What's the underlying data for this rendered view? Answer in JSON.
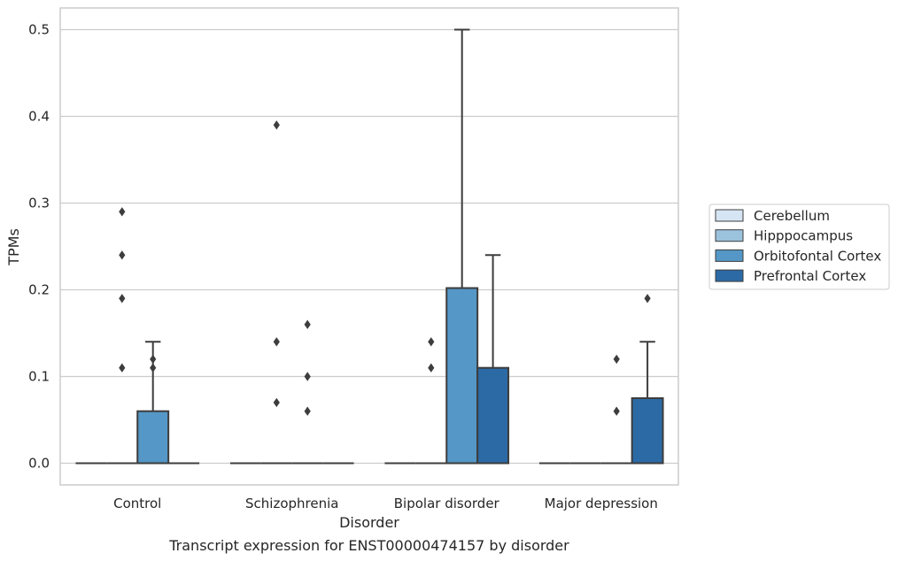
{
  "chart_data": {
    "type": "box",
    "title": "Transcript expression for ENST00000474157 by disorder",
    "xlabel": "Disorder",
    "ylabel": "TPMs",
    "ylim": [
      -0.025,
      0.525
    ],
    "yticks": [
      "0.0",
      "0.1",
      "0.2",
      "0.3",
      "0.4",
      "0.5"
    ],
    "grid": "horizontal",
    "legend_position": "right",
    "categories": [
      "Control",
      "Schizophrenia",
      "Bipolar disorder",
      "Major depression"
    ],
    "series": [
      {
        "name": "Cerebellum",
        "color": "#d6e5f3",
        "boxes": [
          {
            "q1": 0,
            "median": 0,
            "q3": 0,
            "whisker_low": 0,
            "whisker_high": 0,
            "outliers": []
          },
          {
            "q1": 0,
            "median": 0,
            "q3": 0,
            "whisker_low": 0,
            "whisker_high": 0,
            "outliers": []
          },
          {
            "q1": 0,
            "median": 0,
            "q3": 0,
            "whisker_low": 0,
            "whisker_high": 0,
            "outliers": []
          },
          {
            "q1": 0,
            "median": 0,
            "q3": 0,
            "whisker_low": 0,
            "whisker_high": 0,
            "outliers": []
          }
        ]
      },
      {
        "name": "Hipppocampus",
        "color": "#9cc3de",
        "boxes": [
          {
            "q1": 0,
            "median": 0,
            "q3": 0,
            "whisker_low": 0,
            "whisker_high": 0,
            "outliers": [
              0.11,
              0.29,
              0.19,
              0.24
            ]
          },
          {
            "q1": 0,
            "median": 0,
            "q3": 0,
            "whisker_low": 0,
            "whisker_high": 0,
            "outliers": [
              0.07,
              0.14,
              0.39
            ]
          },
          {
            "q1": 0,
            "median": 0,
            "q3": 0,
            "whisker_low": 0,
            "whisker_high": 0,
            "outliers": [
              0.14,
              0.11
            ]
          },
          {
            "q1": 0,
            "median": 0,
            "q3": 0,
            "whisker_low": 0,
            "whisker_high": 0,
            "outliers": []
          }
        ]
      },
      {
        "name": "Orbitofontal Cortex",
        "color": "#5597c6",
        "boxes": [
          {
            "q1": 0,
            "median": 0,
            "q3": 0.06,
            "whisker_low": 0,
            "whisker_high": 0.14,
            "outliers": [
              0.12,
              0.11
            ]
          },
          {
            "q1": 0,
            "median": 0,
            "q3": 0,
            "whisker_low": 0,
            "whisker_high": 0,
            "outliers": [
              0.16,
              0.06,
              0.1
            ]
          },
          {
            "q1": 0,
            "median": 0,
            "q3": 0.202,
            "whisker_low": 0,
            "whisker_high": 0.5,
            "outliers": []
          },
          {
            "q1": 0,
            "median": 0,
            "q3": 0,
            "whisker_low": 0,
            "whisker_high": 0,
            "outliers": [
              0.12,
              0.06
            ]
          }
        ]
      },
      {
        "name": "Prefrontal Cortex",
        "color": "#2b6aa5",
        "boxes": [
          {
            "q1": 0,
            "median": 0,
            "q3": 0,
            "whisker_low": 0,
            "whisker_high": 0,
            "outliers": []
          },
          {
            "q1": 0,
            "median": 0,
            "q3": 0,
            "whisker_low": 0,
            "whisker_high": 0,
            "outliers": []
          },
          {
            "q1": 0,
            "median": 0,
            "q3": 0.11,
            "whisker_low": 0,
            "whisker_high": 0.24,
            "outliers": []
          },
          {
            "q1": 0,
            "median": 0,
            "q3": 0.075,
            "whisker_low": 0,
            "whisker_high": 0.14,
            "outliers": [
              0.19
            ]
          }
        ]
      }
    ]
  }
}
